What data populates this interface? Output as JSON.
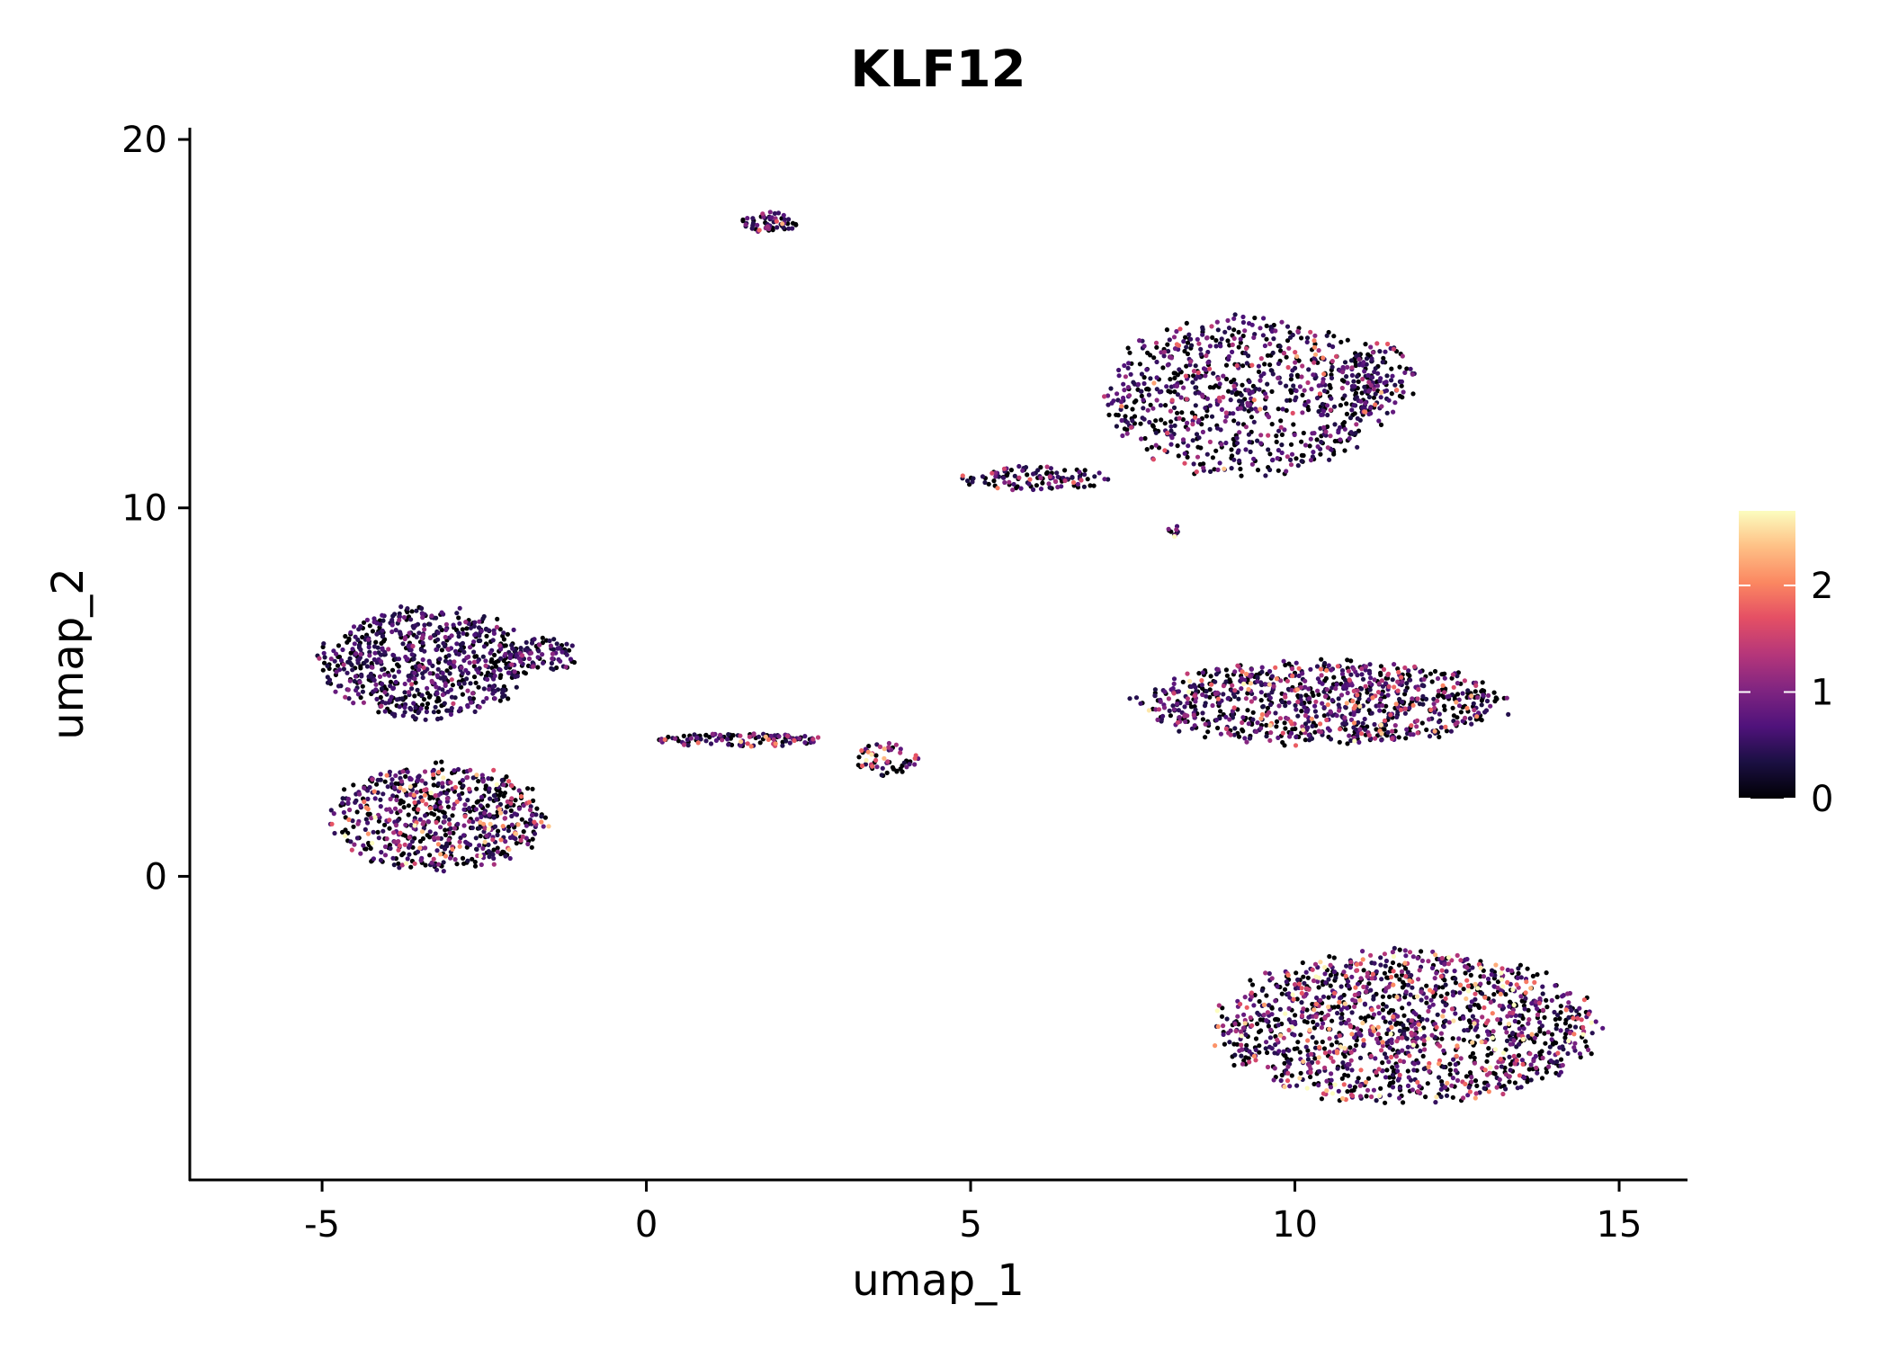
{
  "chart_data": {
    "type": "scatter",
    "title": "KLF12",
    "xlabel": "umap_1",
    "ylabel": "umap_2",
    "xlim": [
      -7.04,
      16.04
    ],
    "ylim": [
      -8.24,
      20.27
    ],
    "xticks": [
      -5,
      0,
      5,
      10,
      15
    ],
    "xtick_labels": [
      "-5",
      "0",
      "5",
      "10",
      "15"
    ],
    "yticks": [
      0,
      10,
      20
    ],
    "ytick_labels": [
      "0",
      "10",
      "20"
    ],
    "grid": false,
    "colorbar": {
      "colormap": "magma",
      "range": [
        0,
        2.7
      ],
      "ticks": [
        0,
        1,
        2
      ],
      "tick_labels": [
        "0",
        "1",
        "2"
      ],
      "placement": "right"
    },
    "clusters": [
      {
        "name": "left-upper",
        "center": [
          -3.4,
          5.8
        ],
        "spread": [
          1.7,
          1.6
        ],
        "n": 700,
        "mean_expr": 0.35
      },
      {
        "name": "left-upper-arm",
        "center": [
          -1.6,
          6.0
        ],
        "spread": [
          0.6,
          0.5
        ],
        "n": 80,
        "mean_expr": 0.3
      },
      {
        "name": "left-lower",
        "center": [
          -3.2,
          1.6
        ],
        "spread": [
          1.75,
          1.55
        ],
        "n": 650,
        "mean_expr": 0.8
      },
      {
        "name": "bridge",
        "center": [
          1.4,
          3.7
        ],
        "spread": [
          1.4,
          0.2
        ],
        "n": 120,
        "mean_expr": 0.7
      },
      {
        "name": "small-mid",
        "center": [
          3.7,
          3.2
        ],
        "spread": [
          0.5,
          0.5
        ],
        "n": 60,
        "mean_expr": 1.1
      },
      {
        "name": "top-small",
        "center": [
          1.9,
          17.75
        ],
        "spread": [
          0.45,
          0.3
        ],
        "n": 60,
        "mean_expr": 0.6
      },
      {
        "name": "upper-right",
        "center": [
          9.2,
          13.0
        ],
        "spread": [
          2.3,
          2.3
        ],
        "n": 800,
        "mean_expr": 0.6
      },
      {
        "name": "upper-right-lobe",
        "center": [
          11.3,
          13.5
        ],
        "spread": [
          0.6,
          1.1
        ],
        "n": 120,
        "mean_expr": 0.5
      },
      {
        "name": "upper-right-arm",
        "center": [
          6.0,
          10.8
        ],
        "spread": [
          1.2,
          0.35
        ],
        "n": 110,
        "mean_expr": 0.5
      },
      {
        "name": "tiny",
        "center": [
          8.1,
          9.4
        ],
        "spread": [
          0.12,
          0.2
        ],
        "n": 10,
        "mean_expr": 1.3
      },
      {
        "name": "middle-right",
        "center": [
          10.4,
          4.7
        ],
        "spread": [
          3.0,
          1.2
        ],
        "n": 900,
        "mean_expr": 0.7
      },
      {
        "name": "bottom-right",
        "center": [
          11.7,
          -4.1
        ],
        "spread": [
          3.1,
          2.2
        ],
        "n": 1400,
        "mean_expr": 0.95
      }
    ]
  }
}
